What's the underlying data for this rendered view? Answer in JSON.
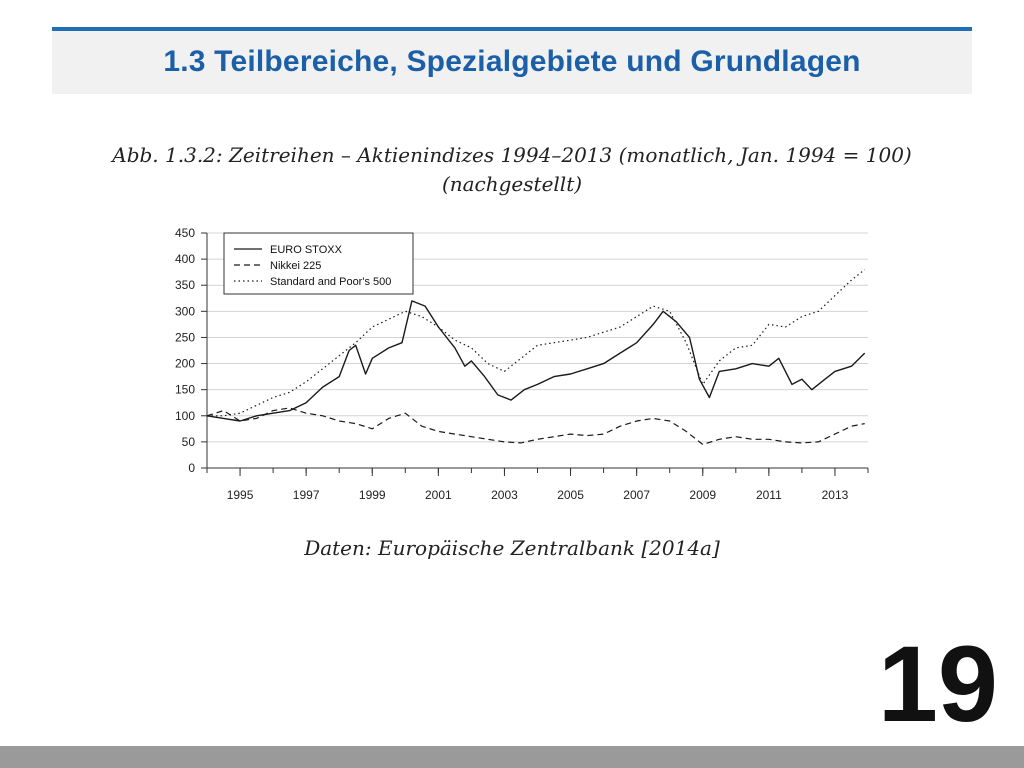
{
  "slide": {
    "title": "1.3 Teilbereiche, Spezialgebiete und Grundlagen",
    "caption_line1": "Abb. 1.3.2: Zeitreihen – Aktienindizes 1994–2013 (monatlich, Jan. 1994 = 100)",
    "caption_line2": "(nachgestellt)",
    "source": "Daten: Europäische Zentralbank [2014a]",
    "page_number": "19",
    "colors": {
      "accent": "#1f6fb4",
      "title": "#1a5fa8",
      "header_bg": "#f1f1f1",
      "footer": "#9a9a9a"
    }
  },
  "chart_data": {
    "type": "line",
    "title": "",
    "xlabel": "",
    "ylabel": "",
    "xlim": [
      1994,
      2014
    ],
    "ylim": [
      0,
      450
    ],
    "y_ticks": [
      0,
      50,
      100,
      150,
      200,
      250,
      300,
      350,
      400,
      450
    ],
    "x_ticks": [
      1995,
      1997,
      1999,
      2001,
      2003,
      2005,
      2007,
      2009,
      2011,
      2013
    ],
    "x_tick_labels": [
      "1995",
      "1997",
      "1999",
      "2001",
      "2003",
      "2005",
      "2007",
      "2009",
      "2011",
      "2013"
    ],
    "grid": true,
    "legend_position": "top-left",
    "series": [
      {
        "name": "EURO STOXX",
        "style": "solid",
        "x": [
          1994.0,
          1994.5,
          1995.0,
          1995.5,
          1996.0,
          1996.5,
          1997.0,
          1997.5,
          1998.0,
          1998.3,
          1998.5,
          1998.8,
          1999.0,
          1999.5,
          1999.9,
          2000.2,
          2000.6,
          2001.0,
          2001.5,
          2001.8,
          2002.0,
          2002.4,
          2002.8,
          2003.2,
          2003.6,
          2004.0,
          2004.5,
          2005.0,
          2005.5,
          2006.0,
          2006.5,
          2007.0,
          2007.5,
          2007.8,
          2008.2,
          2008.6,
          2008.9,
          2009.2,
          2009.5,
          2010.0,
          2010.5,
          2011.0,
          2011.3,
          2011.7,
          2012.0,
          2012.3,
          2012.6,
          2013.0,
          2013.5,
          2013.9
        ],
        "values": [
          100,
          95,
          90,
          100,
          105,
          110,
          125,
          155,
          175,
          225,
          235,
          180,
          210,
          230,
          240,
          320,
          310,
          270,
          230,
          195,
          205,
          175,
          140,
          130,
          150,
          160,
          175,
          180,
          190,
          200,
          220,
          240,
          275,
          300,
          280,
          250,
          170,
          135,
          185,
          190,
          200,
          195,
          210,
          160,
          170,
          150,
          165,
          185,
          195,
          220
        ]
      },
      {
        "name": "Nikkei 225",
        "style": "dashed",
        "x": [
          1994.0,
          1994.5,
          1995.0,
          1995.5,
          1996.0,
          1996.5,
          1997.0,
          1997.5,
          1998.0,
          1998.5,
          1999.0,
          1999.5,
          2000.0,
          2000.5,
          2001.0,
          2001.5,
          2002.0,
          2002.5,
          2003.0,
          2003.5,
          2004.0,
          2004.5,
          2005.0,
          2005.5,
          2006.0,
          2006.5,
          2007.0,
          2007.5,
          2008.0,
          2008.5,
          2009.0,
          2009.5,
          2010.0,
          2010.5,
          2011.0,
          2011.5,
          2012.0,
          2012.5,
          2013.0,
          2013.5,
          2013.9
        ],
        "values": [
          100,
          110,
          90,
          95,
          110,
          115,
          105,
          100,
          90,
          85,
          75,
          95,
          105,
          80,
          70,
          65,
          60,
          55,
          50,
          48,
          55,
          60,
          65,
          62,
          65,
          80,
          90,
          95,
          90,
          70,
          45,
          55,
          60,
          55,
          55,
          50,
          48,
          50,
          65,
          80,
          85
        ]
      },
      {
        "name": "Standard and Poor's 500",
        "style": "dotted",
        "x": [
          1994.0,
          1994.5,
          1995.0,
          1995.5,
          1996.0,
          1996.5,
          1997.0,
          1997.5,
          1998.0,
          1998.5,
          1999.0,
          1999.5,
          2000.0,
          2000.5,
          2001.0,
          2001.5,
          2002.0,
          2002.5,
          2003.0,
          2003.5,
          2004.0,
          2004.5,
          2005.0,
          2005.5,
          2006.0,
          2006.5,
          2007.0,
          2007.5,
          2008.0,
          2008.5,
          2009.0,
          2009.5,
          2010.0,
          2010.5,
          2011.0,
          2011.5,
          2012.0,
          2012.5,
          2013.0,
          2013.5,
          2013.9
        ],
        "values": [
          100,
          100,
          105,
          120,
          135,
          145,
          165,
          190,
          215,
          240,
          270,
          285,
          300,
          290,
          270,
          245,
          230,
          200,
          185,
          210,
          235,
          240,
          245,
          250,
          260,
          270,
          290,
          310,
          300,
          240,
          160,
          205,
          230,
          235,
          275,
          270,
          290,
          300,
          330,
          360,
          380
        ]
      }
    ]
  }
}
